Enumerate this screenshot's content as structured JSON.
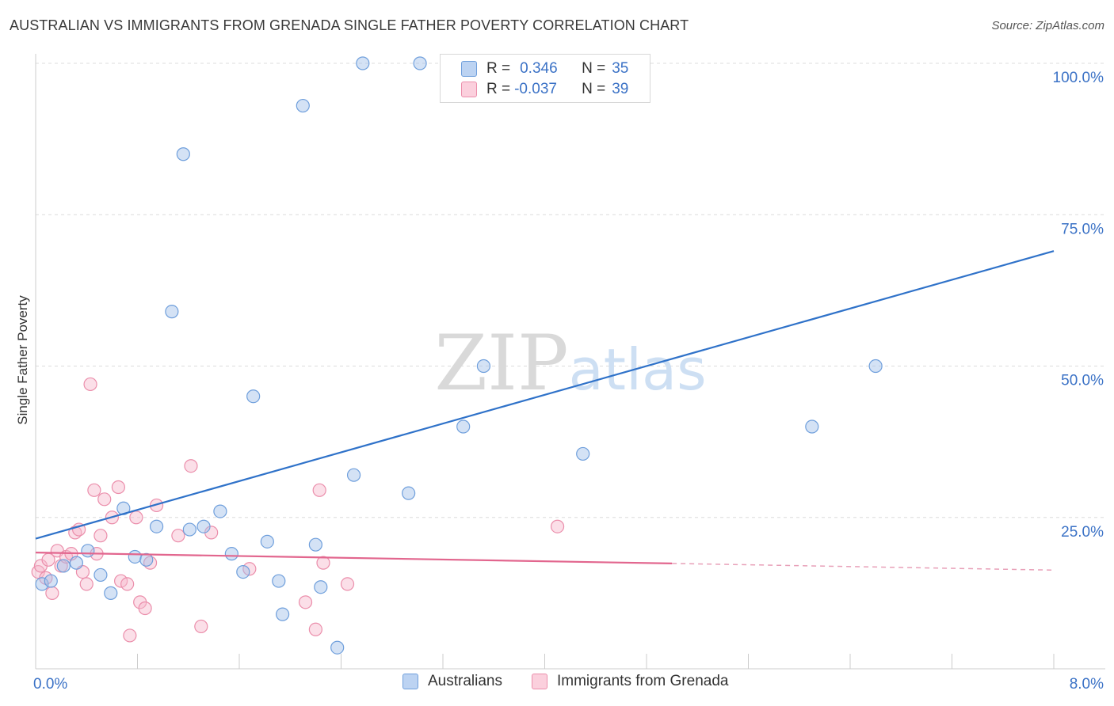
{
  "chart_data": {
    "type": "scatter",
    "title": "AUSTRALIAN VS IMMIGRANTS FROM GRENADA SINGLE FATHER POVERTY CORRELATION CHART",
    "source": "Source: ZipAtlas.com",
    "xlabel": "",
    "ylabel": "Single Father Poverty",
    "xlim": [
      0,
      8
    ],
    "ylim": [
      0,
      100
    ],
    "x_tick_labels": [
      "0.0%",
      "8.0%"
    ],
    "y_ticks": [
      {
        "value": 25,
        "label": "25.0%"
      },
      {
        "value": 50,
        "label": "50.0%"
      },
      {
        "value": 75,
        "label": "75.0%"
      },
      {
        "value": 100,
        "label": "100.0%"
      }
    ],
    "grid": true,
    "watermark": "ZIPatlas",
    "series": [
      {
        "name": "Australians",
        "color": "#9fbfe8",
        "stroke": "#6f9fdc",
        "R": "0.346",
        "N": "35",
        "points": [
          [
            0.05,
            14
          ],
          [
            0.12,
            14.5
          ],
          [
            0.22,
            17
          ],
          [
            0.32,
            17.5
          ],
          [
            0.41,
            19.5
          ],
          [
            0.51,
            15.5
          ],
          [
            0.59,
            12.5
          ],
          [
            0.69,
            26.5
          ],
          [
            0.78,
            18.5
          ],
          [
            0.87,
            18
          ],
          [
            0.95,
            23.5
          ],
          [
            1.07,
            59
          ],
          [
            1.16,
            85
          ],
          [
            1.21,
            23
          ],
          [
            1.32,
            23.5
          ],
          [
            1.45,
            26
          ],
          [
            1.54,
            19
          ],
          [
            1.63,
            16
          ],
          [
            1.71,
            45
          ],
          [
            1.82,
            21
          ],
          [
            1.91,
            14.5
          ],
          [
            1.94,
            9
          ],
          [
            2.1,
            93
          ],
          [
            2.2,
            20.5
          ],
          [
            2.24,
            13.5
          ],
          [
            2.37,
            3.5
          ],
          [
            2.5,
            32
          ],
          [
            2.57,
            100
          ],
          [
            2.93,
            29
          ],
          [
            3.02,
            100
          ],
          [
            3.36,
            40
          ],
          [
            3.52,
            50
          ],
          [
            4.3,
            35.5
          ],
          [
            6.1,
            40
          ],
          [
            6.6,
            50
          ]
        ],
        "trend": [
          [
            0,
            21.5
          ],
          [
            8,
            69
          ]
        ]
      },
      {
        "name": "Immigrants from Grenada",
        "color": "#f6b9cb",
        "stroke": "#eb8eab",
        "R": "-0.037",
        "N": "39",
        "points": [
          [
            0.02,
            16
          ],
          [
            0.04,
            17
          ],
          [
            0.08,
            15
          ],
          [
            0.1,
            18
          ],
          [
            0.13,
            12.5
          ],
          [
            0.17,
            19.5
          ],
          [
            0.2,
            17
          ],
          [
            0.24,
            18.5
          ],
          [
            0.28,
            19
          ],
          [
            0.31,
            22.5
          ],
          [
            0.34,
            23
          ],
          [
            0.37,
            16
          ],
          [
            0.4,
            14
          ],
          [
            0.43,
            47
          ],
          [
            0.46,
            29.5
          ],
          [
            0.48,
            19
          ],
          [
            0.51,
            22
          ],
          [
            0.54,
            28
          ],
          [
            0.6,
            25
          ],
          [
            0.65,
            30
          ],
          [
            0.67,
            14.5
          ],
          [
            0.72,
            14
          ],
          [
            0.74,
            5.5
          ],
          [
            0.79,
            25
          ],
          [
            0.82,
            11
          ],
          [
            0.86,
            10
          ],
          [
            0.9,
            17.5
          ],
          [
            0.95,
            27
          ],
          [
            1.12,
            22
          ],
          [
            1.22,
            33.5
          ],
          [
            1.3,
            7
          ],
          [
            1.38,
            22.5
          ],
          [
            1.68,
            16.5
          ],
          [
            2.12,
            11
          ],
          [
            2.2,
            6.5
          ],
          [
            2.23,
            29.5
          ],
          [
            2.26,
            17.5
          ],
          [
            2.45,
            14
          ],
          [
            4.1,
            23.5
          ]
        ],
        "trend_solid": [
          [
            0,
            19.2
          ],
          [
            5.0,
            17.4
          ]
        ],
        "trend_dashed": [
          [
            5.0,
            17.4
          ],
          [
            8,
            16.3
          ]
        ]
      }
    ]
  },
  "legend_labels": {
    "r": "R =",
    "n": "N ="
  }
}
